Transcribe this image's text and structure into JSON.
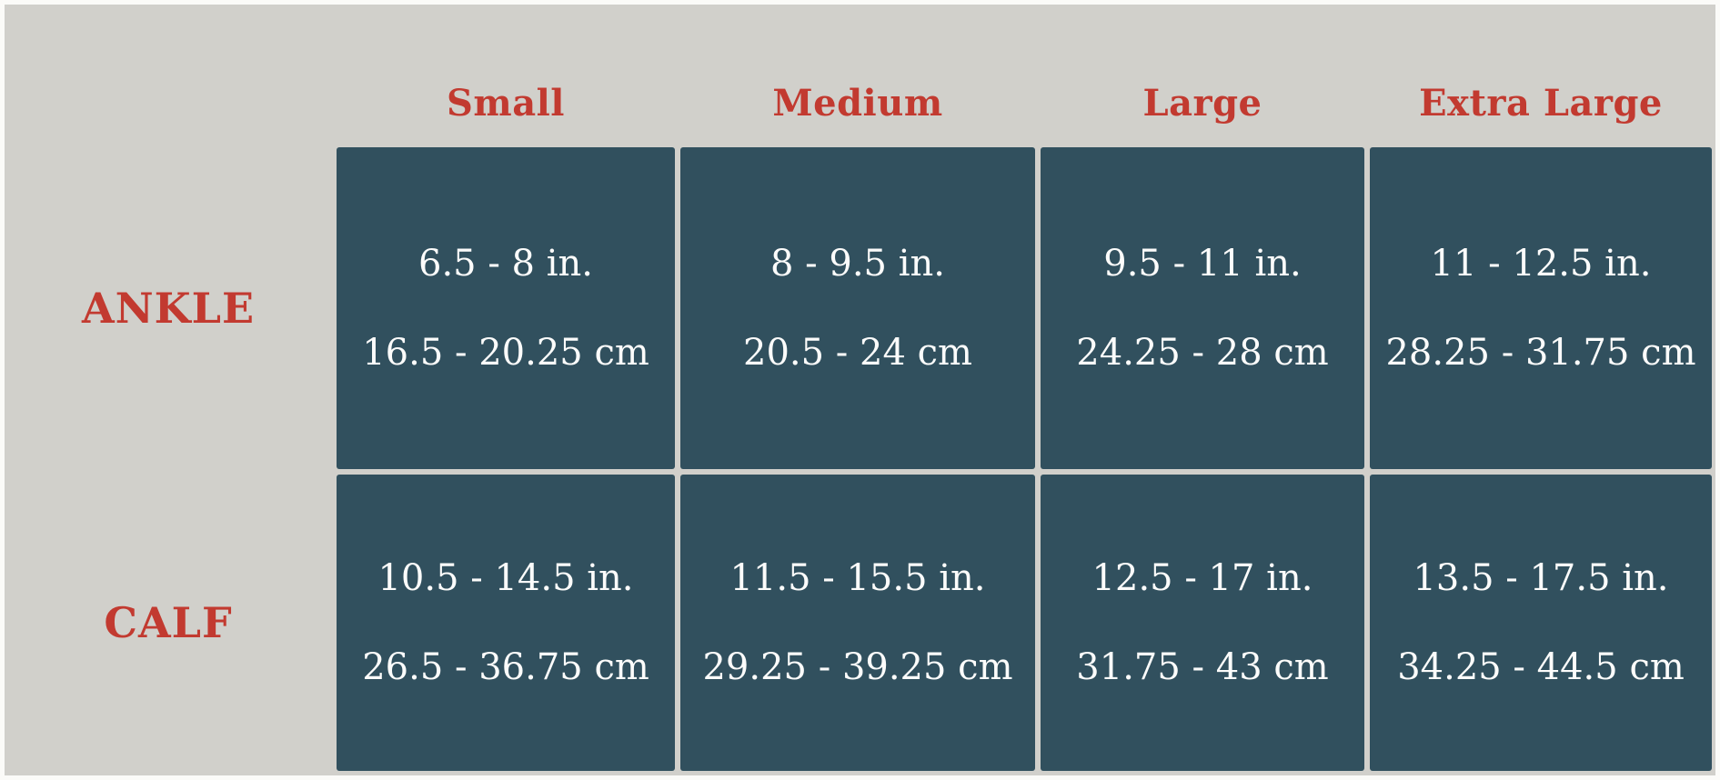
{
  "colors": {
    "background_gray": "#d1d0cb",
    "frame_white": "#fbfbf8",
    "cell_teal": "#31505e",
    "accent_red": "#c23a30",
    "cell_text_white": "#fcfcfb"
  },
  "table": {
    "column_headers": [
      "Small",
      "Medium",
      "Large",
      "Extra Large"
    ],
    "rows": [
      {
        "label": "ANKLE",
        "cells": [
          {
            "inches": "6.5 - 8 in.",
            "centimeters": "16.5 - 20.25 cm"
          },
          {
            "inches": "8 - 9.5 in.",
            "centimeters": "20.5 - 24 cm"
          },
          {
            "inches": "9.5 - 11 in.",
            "centimeters": "24.25 - 28 cm"
          },
          {
            "inches": "11 - 12.5 in.",
            "centimeters": "28.25 - 31.75 cm"
          }
        ]
      },
      {
        "label": "CALF",
        "cells": [
          {
            "inches": "10.5 - 14.5 in.",
            "centimeters": "26.5 - 36.75 cm"
          },
          {
            "inches": "11.5 - 15.5 in.",
            "centimeters": "29.25 - 39.25 cm"
          },
          {
            "inches": "12.5 - 17 in.",
            "centimeters": "31.75 - 43 cm"
          },
          {
            "inches": "13.5 - 17.5 in.",
            "centimeters": "34.25 - 44.5 cm"
          }
        ]
      }
    ]
  },
  "chart_data": {
    "type": "table",
    "title": "",
    "column_headers": [
      "Small",
      "Medium",
      "Large",
      "Extra Large"
    ],
    "row_headers": [
      "ANKLE",
      "CALF"
    ],
    "cells": [
      [
        "6.5 - 8 in. / 16.5 - 20.25 cm",
        "8 - 9.5 in. / 20.5 - 24 cm",
        "9.5 - 11 in. / 24.25 - 28 cm",
        "11 - 12.5 in. / 28.25 - 31.75 cm"
      ],
      [
        "10.5 - 14.5 in. / 26.5 - 36.75 cm",
        "11.5 - 15.5 in. / 29.25 - 39.25 cm",
        "12.5 - 17 in. / 31.75 - 43 cm",
        "13.5 - 17.5 in. / 34.25 - 44.5 cm"
      ]
    ],
    "ankle_ranges_in": [
      [
        6.5,
        8
      ],
      [
        8,
        9.5
      ],
      [
        9.5,
        11
      ],
      [
        11,
        12.5
      ]
    ],
    "ankle_ranges_cm": [
      [
        16.5,
        20.25
      ],
      [
        20.5,
        24
      ],
      [
        24.25,
        28
      ],
      [
        28.25,
        31.75
      ]
    ],
    "calf_ranges_in": [
      [
        10.5,
        14.5
      ],
      [
        11.5,
        15.5
      ],
      [
        12.5,
        17
      ],
      [
        13.5,
        17.5
      ]
    ],
    "calf_ranges_cm": [
      [
        26.5,
        36.75
      ],
      [
        29.25,
        39.25
      ],
      [
        31.75,
        43
      ],
      [
        34.25,
        44.5
      ]
    ]
  }
}
